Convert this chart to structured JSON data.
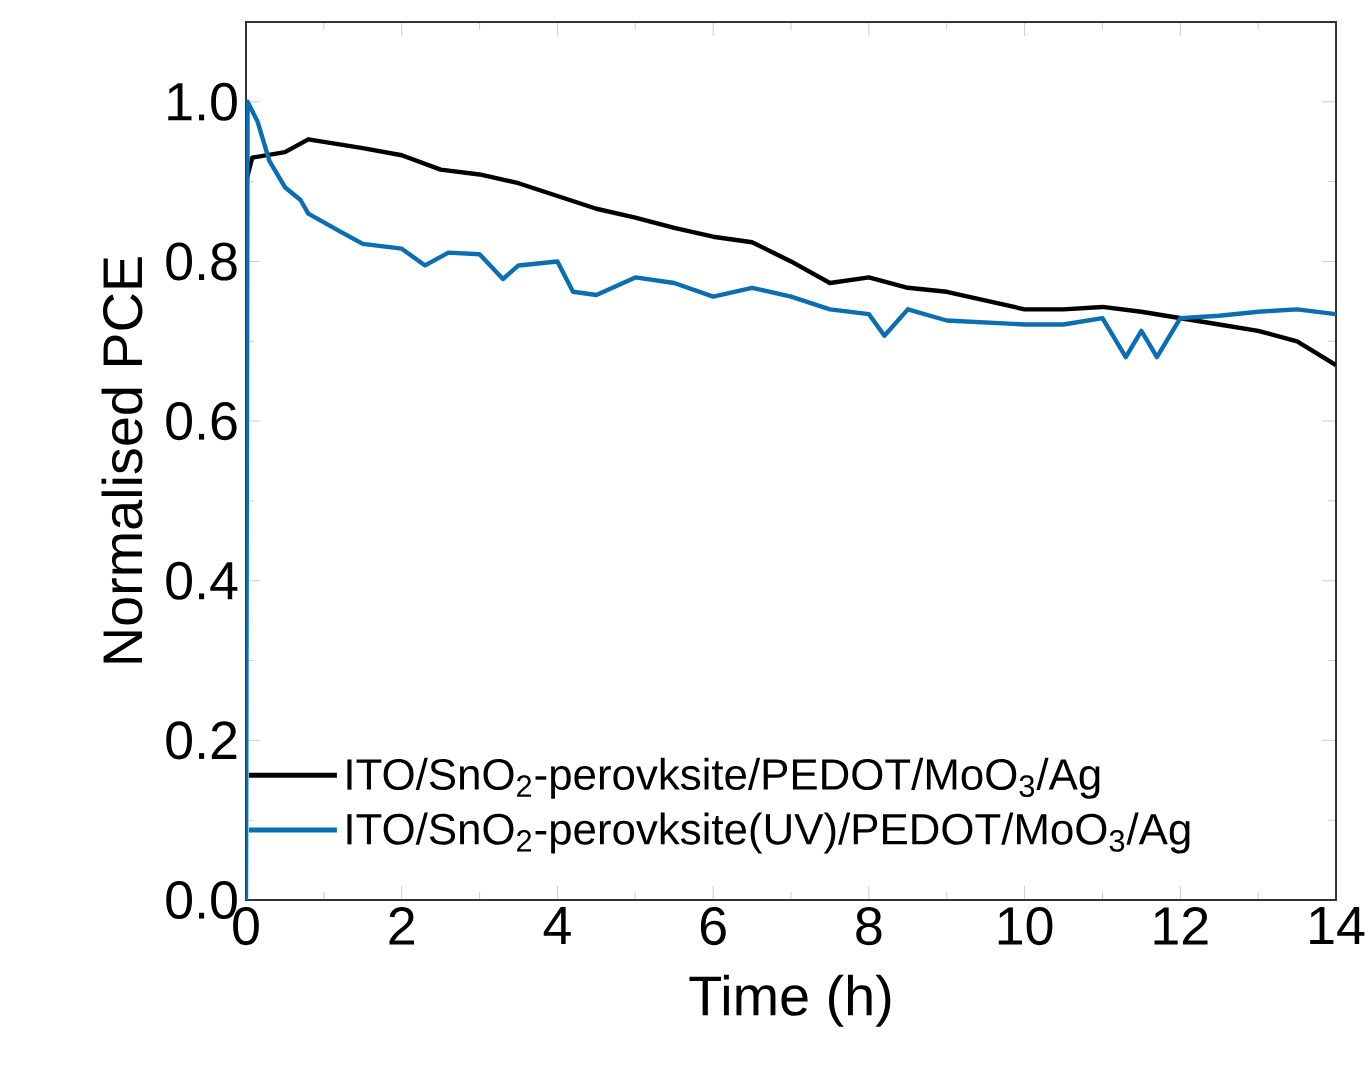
{
  "chart_data": {
    "type": "line",
    "xlabel": "Time (h)",
    "ylabel": "Normalised PCE",
    "xlim": [
      0,
      14
    ],
    "ylim": [
      0,
      1.1
    ],
    "xticks": [
      0,
      2,
      4,
      6,
      8,
      10,
      12,
      14
    ],
    "yticks": [
      {
        "value": 0,
        "label": "0.0"
      },
      {
        "value": 0.2,
        "label": "0.2"
      },
      {
        "value": 0.4,
        "label": "0.4"
      },
      {
        "value": 0.6,
        "label": "0.6"
      },
      {
        "value": 0.8,
        "label": "0.8"
      },
      {
        "value": 1.0,
        "label": "1.0"
      }
    ],
    "legend": "bottom left",
    "line_style": "solid",
    "marker": "none",
    "series": [
      {
        "name": "ITO/SnO$_{2}$-perovksite/PEDOT/MoO$_{3}$/Ag",
        "color": "#000000",
        "x": [
          0,
          0.08,
          0.5,
          0.8,
          1.5,
          2,
          2.5,
          3,
          3.5,
          4,
          4.5,
          5,
          5.5,
          6,
          6.5,
          7,
          7.5,
          8,
          8.5,
          9,
          9.5,
          10,
          10.5,
          11,
          11.5,
          12,
          12.5,
          13,
          13.5,
          14
        ],
        "values": [
          0.9,
          0.93,
          0.937,
          0.953,
          0.942,
          0.933,
          0.915,
          0.909,
          0.898,
          0.882,
          0.866,
          0.855,
          0.842,
          0.831,
          0.824,
          0.8,
          0.773,
          0.78,
          0.767,
          0.762,
          0.751,
          0.74,
          0.74,
          0.743,
          0.737,
          0.729,
          0.721,
          0.713,
          0.7,
          0.67
        ]
      },
      {
        "name": "ITO/SnO$_{2}$-perovksite(UV)/PEDOT/MoO$_{3}$/Ag",
        "color": "#0b6eb0",
        "x": [
          0,
          0.02,
          0.15,
          0.3,
          0.5,
          0.7,
          0.8,
          1,
          1.2,
          1.5,
          2,
          2.3,
          2.6,
          3,
          3.3,
          3.5,
          4,
          4.2,
          4.5,
          5,
          5.5,
          6,
          6.5,
          7,
          7.5,
          8,
          8.2,
          8.5,
          9,
          10,
          10.5,
          11,
          11.3,
          11.5,
          11.7,
          12,
          12.5,
          13,
          13.5,
          14
        ],
        "values": [
          0,
          1.0,
          0.975,
          0.926,
          0.893,
          0.877,
          0.86,
          0.849,
          0.838,
          0.822,
          0.816,
          0.795,
          0.811,
          0.809,
          0.778,
          0.795,
          0.8,
          0.762,
          0.758,
          0.78,
          0.773,
          0.756,
          0.767,
          0.756,
          0.74,
          0.734,
          0.707,
          0.74,
          0.726,
          0.721,
          0.721,
          0.729,
          0.68,
          0.713,
          0.68,
          0.729,
          0.732,
          0.737,
          0.74,
          0.734
        ]
      }
    ]
  }
}
